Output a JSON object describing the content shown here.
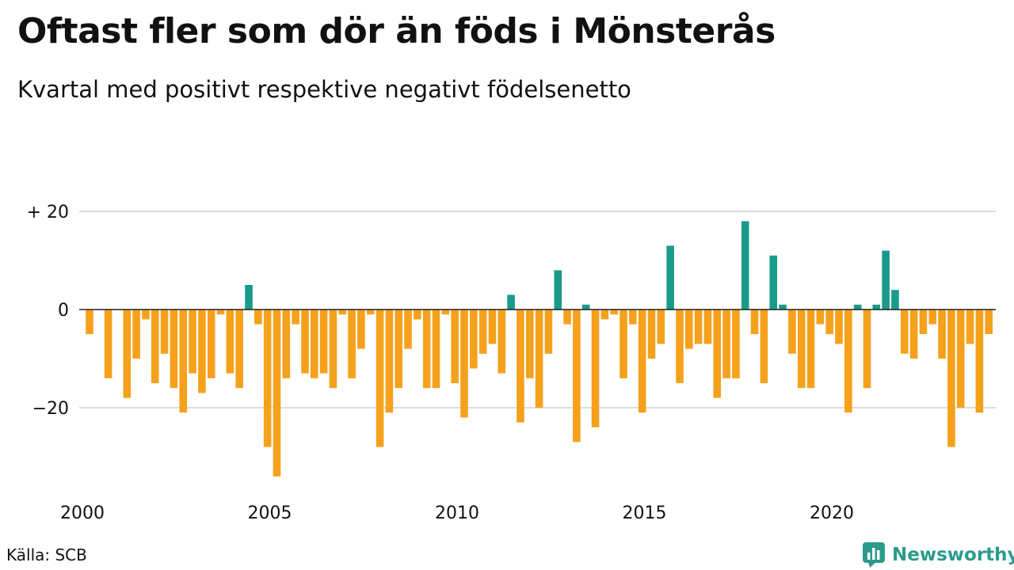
{
  "title": "Oftast fler som dör än föds i Mönsterås",
  "subtitle": "Kvartal med positivt respektive negativt födelsenetto",
  "source": "Källa: SCB",
  "brand": {
    "name": "Newsworthy",
    "icon": "newsworthy-logo-icon"
  },
  "colors": {
    "positive": "#1a9a8a",
    "negative": "#f5a11c",
    "grid": "#dddddd",
    "axis": "#222222"
  },
  "chart_data": {
    "type": "bar",
    "xlabel": "",
    "ylabel": "",
    "x_start": "2000 Q1",
    "x_ticks": [
      {
        "label": "2000",
        "value": 2000
      },
      {
        "label": "2005",
        "value": 2005
      },
      {
        "label": "2010",
        "value": 2010
      },
      {
        "label": "2015",
        "value": 2015
      },
      {
        "label": "2020",
        "value": 2020
      }
    ],
    "y_ticks": [
      {
        "label": "+ 20",
        "value": 20
      },
      {
        "label": "0",
        "value": 0
      },
      {
        "label": "−20",
        "value": -20
      }
    ],
    "xlim": [
      2000,
      2024.75
    ],
    "ylim": [
      -36,
      22
    ],
    "grid": true,
    "values": [
      -5,
      0,
      -14,
      0,
      -18,
      -10,
      -2,
      -15,
      -9,
      -16,
      -21,
      -13,
      -17,
      -14,
      -1,
      -13,
      -16,
      5,
      -3,
      -28,
      -34,
      -14,
      -3,
      -13,
      -14,
      -13,
      -16,
      -1,
      -14,
      -8,
      -1,
      -28,
      -21,
      -16,
      -8,
      -2,
      -16,
      -16,
      -1,
      -15,
      -22,
      -12,
      -9,
      -7,
      -13,
      3,
      -23,
      -14,
      -20,
      -9,
      8,
      -3,
      -27,
      1,
      -24,
      -2,
      -1,
      -14,
      -3,
      -21,
      -10,
      -7,
      13,
      -15,
      -8,
      -7,
      -7,
      -18,
      -14,
      -14,
      18,
      -5,
      -15,
      11,
      1,
      -9,
      -16,
      -16,
      -3,
      -5,
      -7,
      -21,
      1,
      -16,
      1,
      12,
      4,
      -9,
      -10,
      -5,
      -3,
      -10,
      -28,
      -20,
      -7,
      -21,
      -5
    ]
  }
}
